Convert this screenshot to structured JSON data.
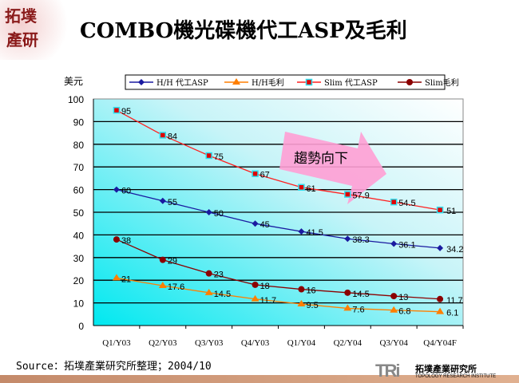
{
  "logo_text": "拓墣產研",
  "title": "COMBO機光碟機代工ASP及毛利",
  "source": "Source：拓墣產業研究所整理；2004/10",
  "brand": {
    "mark": "TRi",
    "name_zh": "拓墣產業研究所",
    "name_en": "TOPOLOGY RESEARCH INSTITUTE"
  },
  "chart_data": {
    "type": "line",
    "ylabel": "美元",
    "ylim": [
      0,
      100
    ],
    "yticks": [
      0,
      10,
      20,
      30,
      40,
      50,
      60,
      70,
      80,
      90,
      100
    ],
    "grid": true,
    "legend_placement": "top",
    "categories": [
      "Q1/Y03",
      "Q2/Y03",
      "Q3/Y03",
      "Q4/Y03",
      "Q1/Y04",
      "Q2/Y04",
      "Q3/Y04",
      "Q4/Y04F"
    ],
    "annotation": "趨勢向下",
    "series": [
      {
        "name": "H/H 代工ASP",
        "color": "#1a1aa0",
        "marker": "diamond",
        "values": [
          60,
          55,
          50,
          45,
          41.5,
          38.3,
          36.1,
          34.2
        ]
      },
      {
        "name": "H/H毛利",
        "color": "#ff7f00",
        "marker": "triangle",
        "values": [
          21,
          17.6,
          14.5,
          11.7,
          9.5,
          7.6,
          6.8,
          6.1
        ]
      },
      {
        "name": "Slim 代工ASP",
        "color": "#ff2020",
        "marker": "square",
        "values": [
          95,
          84,
          75,
          67,
          61,
          57.9,
          54.5,
          51
        ]
      },
      {
        "name": "Slim毛利",
        "color": "#8b0000",
        "marker": "circle",
        "values": [
          38,
          29,
          23,
          18,
          16,
          14.5,
          13,
          11.7
        ]
      }
    ]
  }
}
